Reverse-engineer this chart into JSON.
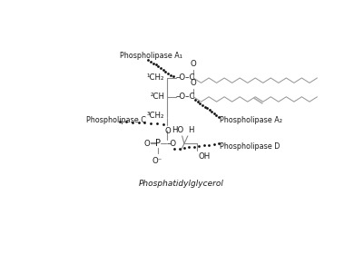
{
  "bg": "#ffffff",
  "lc": "#888888",
  "tc": "#1a1a1a",
  "dc": "#111111",
  "label_PLA1": "Phospholipase A₁",
  "label_PLA2": "Phospholipase A₂",
  "label_PLC": "Phospholipase C",
  "label_PLD": "Phospholipase D",
  "title": "Phosphatidylglycerol",
  "C1_label": "¹CH₂",
  "C2_label": "²CH",
  "C3_label": "³CH₂",
  "fs": 6.2,
  "fs_lbl": 5.8,
  "fs_title": 6.5,
  "lw": 0.8,
  "chain_color": "#999999"
}
